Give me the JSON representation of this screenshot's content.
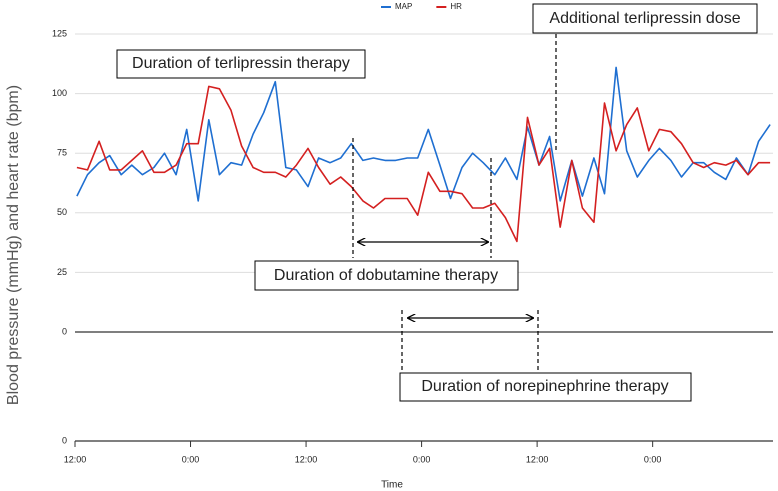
{
  "chart_data": {
    "type": "line",
    "x_label": "Time",
    "y_label": "Blood pressure (mmHg) and heart rate (bpm)",
    "x": [
      0.2,
      1.3,
      2.5,
      3.6,
      4.8,
      5.9,
      7.0,
      8.2,
      9.3,
      10.5,
      11.6,
      12.8,
      13.9,
      15.0,
      16.2,
      17.3,
      18.5,
      19.6,
      20.8,
      21.9,
      23.0,
      24.2,
      25.3,
      26.5,
      27.6,
      28.7,
      29.9,
      31.0,
      32.2,
      33.3,
      34.5,
      35.6,
      36.7,
      37.9,
      39.0,
      40.2,
      41.3,
      42.4,
      43.6,
      44.7,
      45.9,
      47.0,
      48.2,
      49.3,
      50.4,
      51.6,
      52.7,
      53.9,
      55.0,
      56.2,
      57.3,
      58.4,
      59.6,
      60.7,
      61.9,
      63.0,
      64.2,
      65.3,
      66.4,
      67.6,
      68.7,
      69.9,
      71.0,
      72.2
    ],
    "series": [
      {
        "name": "MAP",
        "color": "#1f6fd1",
        "values": [
          57,
          66,
          71,
          74,
          66,
          70,
          66,
          69,
          75,
          66,
          85,
          55,
          89,
          66,
          71,
          70,
          83,
          92,
          105,
          69,
          68,
          61,
          73,
          71,
          73,
          79,
          72,
          73,
          72,
          72,
          73,
          73,
          85,
          70,
          56,
          69,
          75,
          71,
          66,
          73,
          64,
          86,
          70,
          82,
          55,
          72,
          57,
          73,
          58,
          111,
          76,
          65,
          72,
          77,
          72,
          65,
          71,
          71,
          67,
          64,
          73,
          66,
          80,
          87
        ]
      },
      {
        "name": "HR",
        "color": "#d42020",
        "values": [
          69,
          68,
          80,
          68,
          68,
          72,
          76,
          67,
          67,
          70,
          79,
          79,
          103,
          102,
          93,
          78,
          69,
          67,
          67,
          65,
          70,
          77,
          69,
          62,
          65,
          61,
          55,
          52,
          56,
          56,
          56,
          49,
          67,
          59,
          59,
          58,
          52,
          52,
          54,
          48,
          38,
          90,
          70,
          77,
          44,
          72,
          52,
          46,
          96,
          76,
          87,
          94,
          76,
          85,
          84,
          79,
          71,
          69,
          71,
          70,
          72,
          66,
          71,
          71
        ]
      }
    ],
    "xlim": [
      0,
      72.5
    ],
    "xticks": [
      {
        "value": 0,
        "label": "12:00"
      },
      {
        "value": 12,
        "label": "0:00"
      },
      {
        "value": 24,
        "label": "12:00"
      },
      {
        "value": 36,
        "label": "0:00"
      },
      {
        "value": 48,
        "label": "12:00"
      },
      {
        "value": 60,
        "label": "0:00"
      }
    ],
    "ylim": [
      0,
      125
    ],
    "yticks": [
      0,
      25,
      50,
      75,
      100,
      125
    ],
    "y_axis_bottom_label": "0",
    "grid": true,
    "legend": "top",
    "annotations": [
      "Duration of terlipressin therapy",
      "Additional terlipressin dose",
      "Duration of dobutamine therapy",
      "Duration of norepinephrine therapy"
    ]
  }
}
